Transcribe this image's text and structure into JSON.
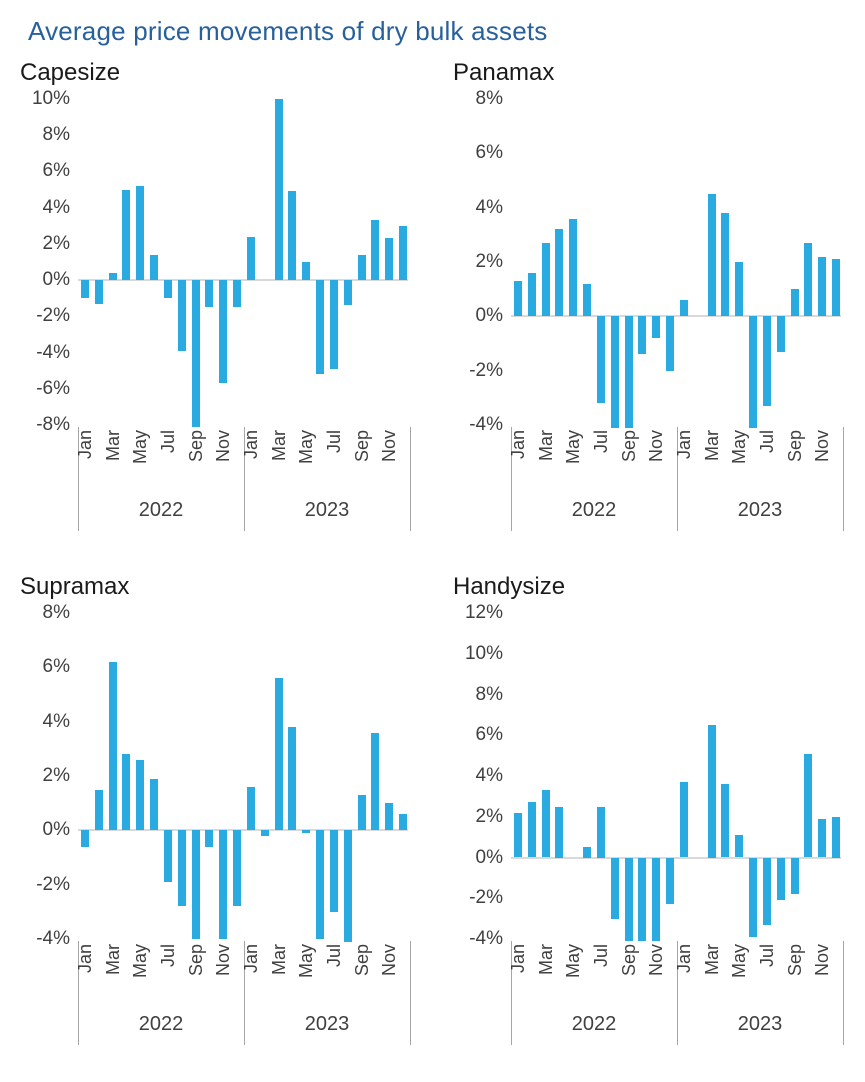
{
  "main_title": "Average price movements of dry bulk assets",
  "colors": {
    "bar": "#29ABE2",
    "main_title_text": "#27609B",
    "axis_text": "#404040",
    "zero_line": "#D9D9D9",
    "separator_line": "#A6A6A6"
  },
  "months": [
    "Jan",
    "Feb",
    "Mar",
    "Apr",
    "May",
    "Jun",
    "Jul",
    "Aug",
    "Sep",
    "Oct",
    "Nov",
    "Dec"
  ],
  "x_tick_months_shown": [
    "Jan",
    "Mar",
    "May",
    "Jul",
    "Sep",
    "Nov"
  ],
  "chart_data": [
    {
      "type": "bar",
      "title": "Capesize",
      "value_unit": "%",
      "ylim": [
        -8,
        10
      ],
      "ytick_step": 2,
      "grid": false,
      "years": [
        {
          "label": "2022",
          "values": [
            -1.0,
            -1.3,
            0.4,
            5.0,
            5.2,
            1.4,
            -1.0,
            -3.9,
            -8.1,
            -1.5,
            -5.7,
            -1.5
          ]
        },
        {
          "label": "2023",
          "values": [
            2.4,
            0,
            10.0,
            4.9,
            1.0,
            -5.2,
            -4.9,
            -1.4,
            1.4,
            3.3,
            2.3,
            3.0
          ]
        }
      ]
    },
    {
      "type": "bar",
      "title": "Panamax",
      "value_unit": "%",
      "ylim": [
        -4,
        8
      ],
      "ytick_step": 2,
      "grid": false,
      "years": [
        {
          "label": "2022",
          "values": [
            1.3,
            1.6,
            2.7,
            3.2,
            3.6,
            1.2,
            -3.2,
            -4.1,
            -4.1,
            -1.4,
            -0.8,
            -2.0
          ]
        },
        {
          "label": "2023",
          "values": [
            0.6,
            0,
            4.5,
            3.8,
            2.0,
            -4.1,
            -3.3,
            -1.3,
            1.0,
            2.7,
            2.2,
            2.1
          ]
        }
      ]
    },
    {
      "type": "bar",
      "title": "Supramax",
      "value_unit": "%",
      "ylim": [
        -4,
        8
      ],
      "ytick_step": 2,
      "grid": false,
      "years": [
        {
          "label": "2022",
          "values": [
            -0.6,
            1.5,
            6.2,
            2.8,
            2.6,
            1.9,
            -1.9,
            -2.8,
            -4.0,
            -0.6,
            -4.0,
            -2.8
          ]
        },
        {
          "label": "2023",
          "values": [
            1.6,
            -0.2,
            5.6,
            3.8,
            -0.1,
            -4.0,
            -3.0,
            -4.1,
            1.3,
            3.6,
            1.0,
            0.6
          ]
        }
      ]
    },
    {
      "type": "bar",
      "title": "Handysize",
      "value_unit": "%",
      "ylim": [
        -4,
        12
      ],
      "ytick_step": 2,
      "grid": false,
      "years": [
        {
          "label": "2022",
          "values": [
            2.2,
            2.7,
            3.3,
            2.5,
            0,
            0.5,
            2.5,
            -3.0,
            -4.1,
            -4.1,
            -4.1,
            -2.3
          ]
        },
        {
          "label": "2023",
          "values": [
            3.7,
            0,
            6.5,
            3.6,
            1.1,
            -3.9,
            -3.3,
            -2.1,
            -1.8,
            5.1,
            1.9,
            2.0
          ]
        }
      ]
    }
  ]
}
